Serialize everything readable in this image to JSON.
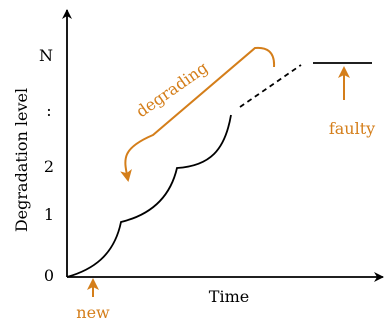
{
  "diagram": {
    "x_axis_label": "Time",
    "y_axis_label": "Degradation level",
    "y_ticks": [
      "0",
      "1",
      "2",
      ":",
      "N"
    ],
    "annotations": {
      "new": "new",
      "faulty": "faulty",
      "degrading": "degrading"
    },
    "colors": {
      "axis": "#000000",
      "curve": "#000000",
      "annotation": "#d47e1a"
    }
  }
}
